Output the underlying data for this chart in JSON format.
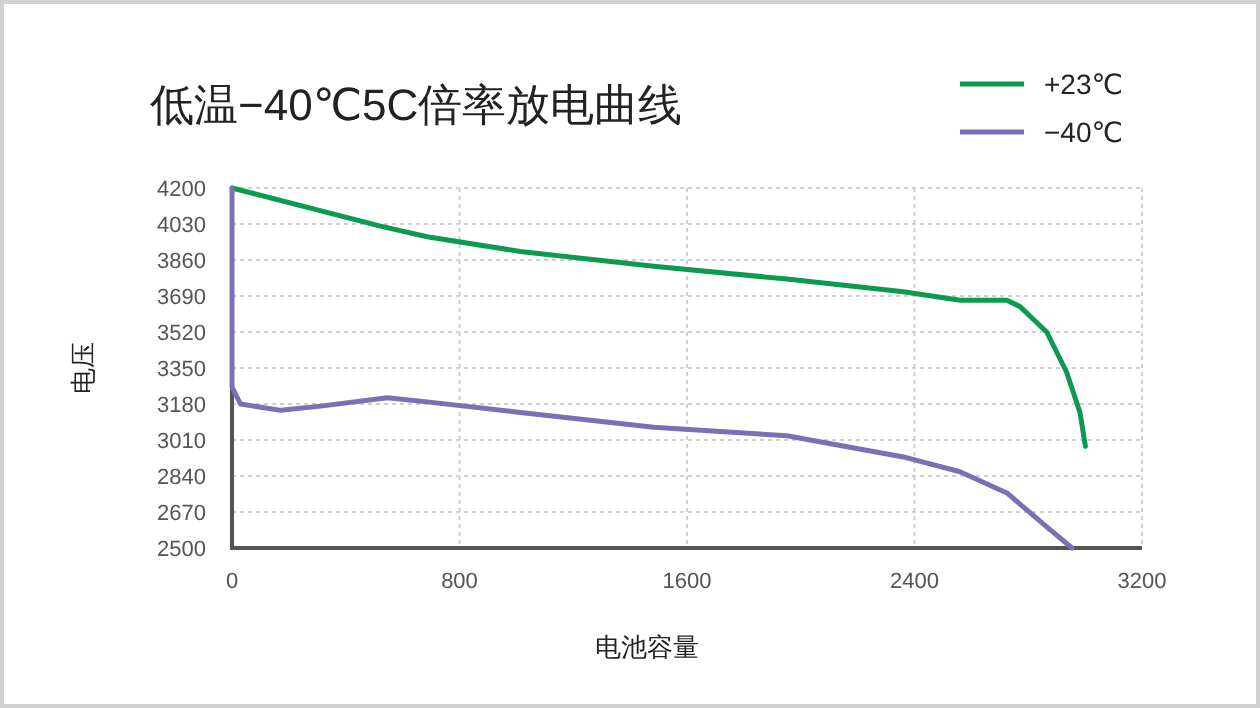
{
  "chart_data": {
    "type": "line",
    "title": "低温−40℃5C倍率放电曲线",
    "xlabel": "电池容量",
    "ylabel": "电压",
    "xlim": [
      0,
      3200
    ],
    "xticks": [
      0,
      800,
      1600,
      2400,
      3200
    ],
    "ylim": [
      2500,
      4200
    ],
    "yticks": [
      2500,
      2670,
      2840,
      3010,
      3180,
      3350,
      3520,
      3690,
      3860,
      4030,
      4200
    ],
    "grid": true,
    "legend": "top right",
    "series": [
      {
        "name": "+23℃",
        "color": "#0c9a4f",
        "x": [
          0,
          522,
          686,
          1014,
          1483,
          1951,
          2361,
          2560,
          2725,
          2771,
          2865,
          2935,
          2982,
          3001
        ],
        "values": [
          4200,
          4020,
          3970,
          3900,
          3830,
          3770,
          3710,
          3670,
          3670,
          3640,
          3520,
          3330,
          3140,
          2980
        ]
      },
      {
        "name": "−40℃",
        "color": "#7b6fb5",
        "x": [
          0,
          0,
          30,
          171,
          312,
          546,
          686,
          1014,
          1483,
          1951,
          2361,
          2560,
          2725,
          2865,
          2954
        ],
        "values": [
          4200,
          3260,
          3180,
          3150,
          3170,
          3210,
          3190,
          3140,
          3070,
          3030,
          2930,
          2860,
          2760,
          2600,
          2500
        ]
      }
    ]
  }
}
